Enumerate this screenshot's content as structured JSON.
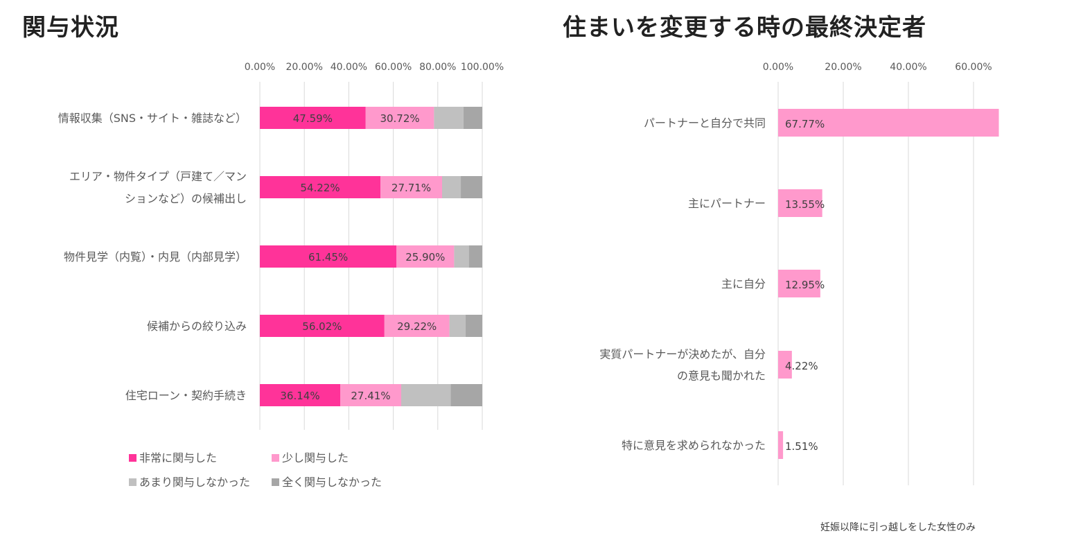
{
  "chart_data": [
    {
      "type": "bar",
      "stacked": true,
      "orientation": "horizontal",
      "title": "関与状況",
      "xlim": [
        0,
        100
      ],
      "x_ticks": [
        "0.00%",
        "20.00%",
        "40.00%",
        "60.00%",
        "80.00%",
        "100.00%"
      ],
      "grid": true,
      "legend_position": "bottom",
      "categories": [
        [
          "情報収集（SNS・サイト・雑誌など）"
        ],
        [
          "エリア・物件タイプ（戸建て／マン",
          "ションなど）の候補出し"
        ],
        [
          "物件見学（内覧）・内見（内部見学）"
        ],
        [
          "候補からの絞り込み"
        ],
        [
          "住宅ローン・契約手続き"
        ]
      ],
      "series": [
        {
          "name": "非常に関与した",
          "color": "#FF3399",
          "values": [
            47.59,
            54.22,
            61.45,
            56.02,
            36.14
          ],
          "labels": [
            "47.59%",
            "54.22%",
            "61.45%",
            "56.02%",
            "36.14%"
          ]
        },
        {
          "name": "少し関与した",
          "color": "#FF99CC",
          "values": [
            30.72,
            27.71,
            25.9,
            29.22,
            27.41
          ],
          "labels": [
            "30.72%",
            "27.71%",
            "25.90%",
            "29.22%",
            "27.41%"
          ]
        },
        {
          "name": "あまり関与しなかった",
          "color": "#C0C0C0",
          "values": [
            13.25,
            8.43,
            6.63,
            7.23,
            22.29
          ]
        },
        {
          "name": "全く関与しなかった",
          "color": "#A6A6A6",
          "values": [
            8.44,
            9.64,
            6.02,
            7.53,
            14.16
          ]
        }
      ]
    },
    {
      "type": "bar",
      "orientation": "horizontal",
      "title": "住まいを変更する時の最終決定者",
      "xlim": [
        0,
        70
      ],
      "x_ticks": [
        "0.00%",
        "20.00%",
        "40.00%",
        "60.00%"
      ],
      "grid": true,
      "color": "#FF99CC",
      "categories": [
        [
          "パートナーと自分で共同"
        ],
        [
          "主にパートナー"
        ],
        [
          "主に自分"
        ],
        [
          "実質パートナーが決めたが、自分",
          "の意見も聞かれた"
        ],
        [
          "特に意見を求められなかった"
        ]
      ],
      "values": [
        67.77,
        13.55,
        12.95,
        4.22,
        1.51
      ],
      "labels": [
        "67.77%",
        "13.55%",
        "12.95%",
        "4.22%",
        "1.51%"
      ]
    }
  ],
  "footnote": "妊娠以降に引っ越しをした女性のみ"
}
